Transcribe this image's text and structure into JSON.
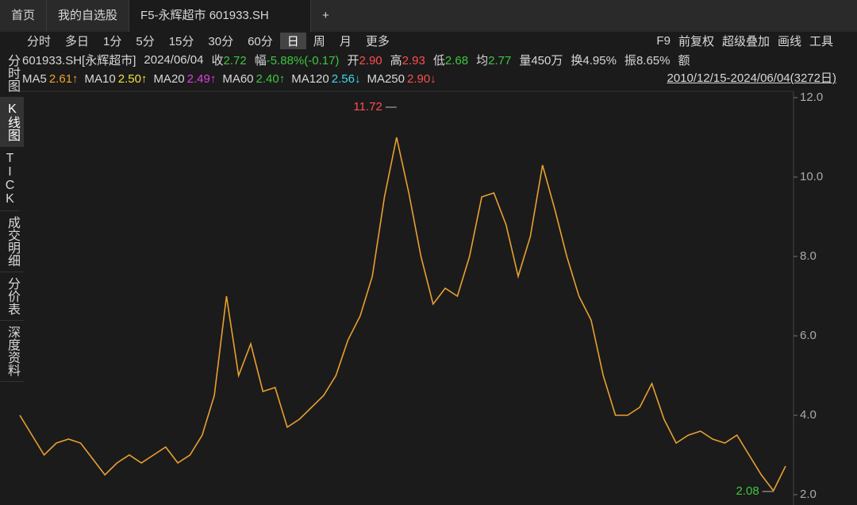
{
  "tabs": [
    "首页",
    "我的自选股",
    "F5-永辉超市 601933.SH"
  ],
  "periods": [
    "分时",
    "多日",
    "1分",
    "5分",
    "15分",
    "30分",
    "60分",
    "日",
    "周",
    "月",
    "更多"
  ],
  "tools": [
    "F9",
    "前复权",
    "超级叠加",
    "画线",
    "工具"
  ],
  "side": [
    "分时图",
    "K线图",
    "TICK",
    "成交明细",
    "分价表",
    "深度资料"
  ],
  "quote": {
    "code": "601933.SH[永辉超市]",
    "date": "2024/06/04",
    "items": [
      {
        "label": "收",
        "value": "2.72",
        "color": "#3ec63e"
      },
      {
        "label": "幅",
        "value": "-5.88%(-0.17)",
        "color": "#3ec63e"
      },
      {
        "label": "开",
        "value": "2.90",
        "color": "#ff4d4d"
      },
      {
        "label": "高",
        "value": "2.93",
        "color": "#ff4d4d"
      },
      {
        "label": "低",
        "value": "2.68",
        "color": "#3ec63e"
      },
      {
        "label": "均",
        "value": "2.77",
        "color": "#3ec63e"
      },
      {
        "label": "量",
        "value": "450万",
        "color": "#d8d8d8"
      },
      {
        "label": "换",
        "value": "4.95%",
        "color": "#d8d8d8"
      },
      {
        "label": "振",
        "value": "8.65%",
        "color": "#d8d8d8"
      },
      {
        "label": "额"
      }
    ]
  },
  "ma": [
    {
      "name": "MA5",
      "value": "2.61↑",
      "color": "#f0a030"
    },
    {
      "name": "MA10",
      "value": "2.50↑",
      "color": "#f0e040"
    },
    {
      "name": "MA20",
      "value": "2.49↑",
      "color": "#e040e0"
    },
    {
      "name": "MA60",
      "value": "2.40↑",
      "color": "#3ec63e"
    },
    {
      "name": "MA120",
      "value": "2.56↓",
      "color": "#40d8e8"
    },
    {
      "name": "MA250",
      "value": "2.90↓",
      "color": "#ff4d4d"
    }
  ],
  "range": "2010/12/15-2024/06/04(3272日)",
  "chart_data": {
    "type": "line",
    "color": "#e8a030",
    "values": [
      4.0,
      3.5,
      3.0,
      3.3,
      3.4,
      3.3,
      2.9,
      2.5,
      2.8,
      3.0,
      2.8,
      3.0,
      3.2,
      2.8,
      3.0,
      3.5,
      4.5,
      7.0,
      5.0,
      5.8,
      4.6,
      4.7,
      3.7,
      3.9,
      4.2,
      4.5,
      5.0,
      5.9,
      6.5,
      7.5,
      9.5,
      11.0,
      9.6,
      8.0,
      6.8,
      7.2,
      7.0,
      8.0,
      9.5,
      9.6,
      8.8,
      7.5,
      8.5,
      10.3,
      9.2,
      8.0,
      7.0,
      6.4,
      5.0,
      4.0,
      4.0,
      4.2,
      4.8,
      3.9,
      3.3,
      3.5,
      3.6,
      3.4,
      3.3,
      3.5,
      3.0,
      2.5,
      2.1,
      2.72
    ],
    "ylim": [
      1.74,
      12.16
    ],
    "yticks": [
      {
        "value": 2,
        "label": "2.0"
      },
      {
        "value": 4,
        "label": "4.0"
      },
      {
        "value": 6,
        "label": "6.0"
      },
      {
        "value": 8,
        "label": "8.0"
      },
      {
        "value": 10,
        "label": "10.0"
      },
      {
        "value": 12,
        "label": "12.0"
      }
    ],
    "annotations": [
      {
        "value": 11.72,
        "label": "11.72",
        "color": "#ff4d4d"
      },
      {
        "value": 2.08,
        "label": "2.08",
        "color": "#3ec63e"
      }
    ]
  }
}
